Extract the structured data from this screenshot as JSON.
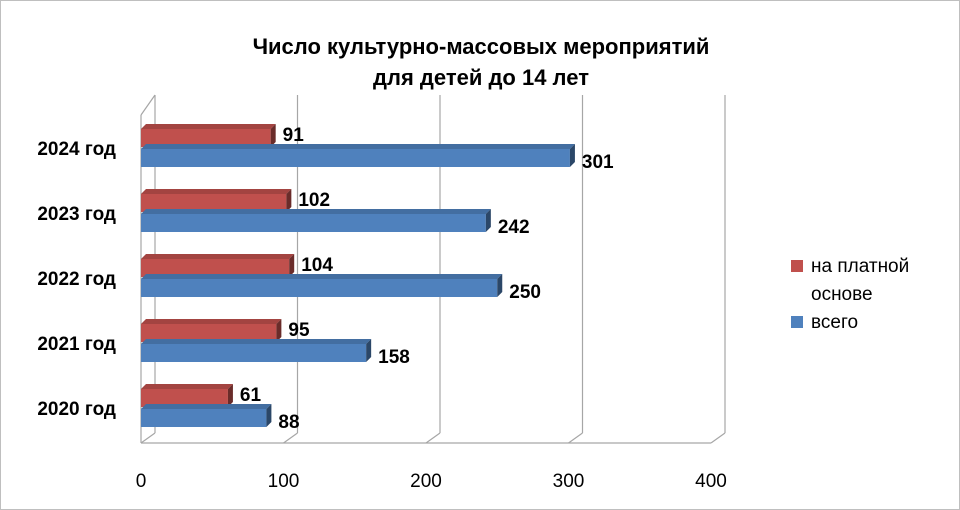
{
  "chart_data": {
    "type": "bar",
    "orientation": "horizontal",
    "style": "3d",
    "title": "Число культурно-массовых мероприятий",
    "subtitle": "для детей до 14 лет",
    "categories": [
      "2024 год",
      "2023 год",
      "2022 год",
      "2021 год",
      "2020 год"
    ],
    "series": [
      {
        "name": "на платной основе",
        "color": "#c0504d",
        "values": [
          91,
          102,
          104,
          95,
          61
        ]
      },
      {
        "name": "всего",
        "color": "#4f81bd",
        "values": [
          301,
          242,
          250,
          158,
          88
        ]
      }
    ],
    "xlim": [
      0,
      400
    ],
    "xticks": [
      "0",
      "100",
      "200",
      "300",
      "400"
    ],
    "grid": true,
    "legend_position": "right",
    "legend_lines": [
      [
        "на платной",
        "основе"
      ],
      [
        "всего"
      ]
    ]
  }
}
